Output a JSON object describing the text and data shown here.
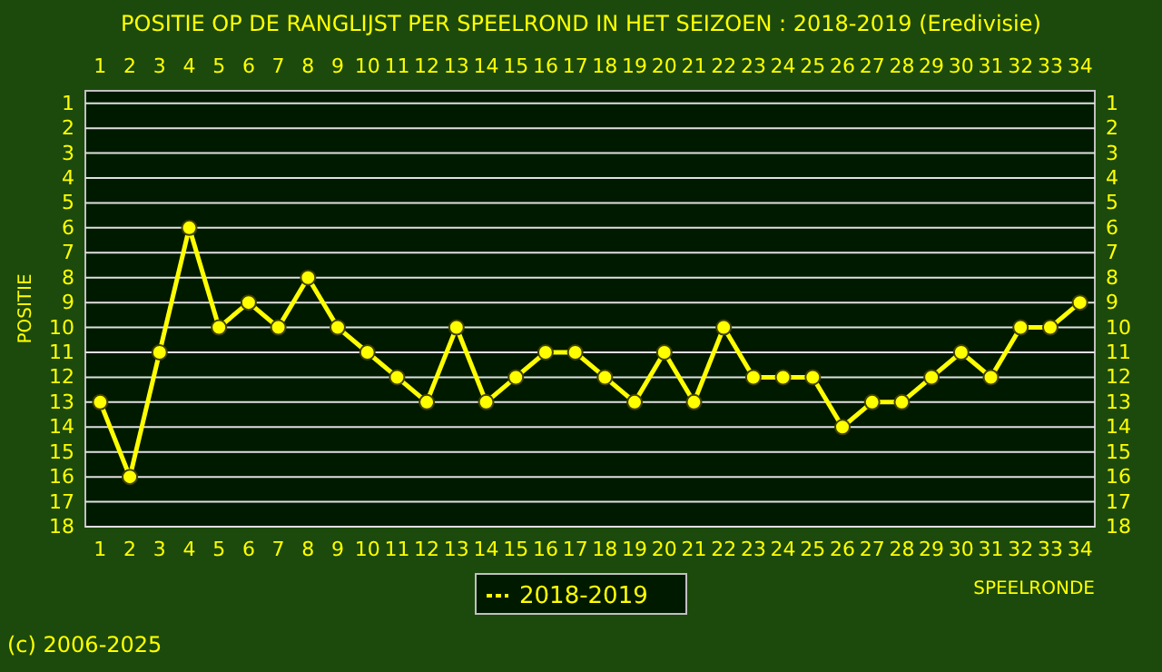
{
  "chart_data": {
    "type": "line",
    "title": "POSITIE OP DE RANGLIJST PER  SPEELROND IN HET SEIZOEN : 2018-2019 (Eredivisie)",
    "xlabel": "SPEELRONDE",
    "ylabel": "POSITIE",
    "x": [
      1,
      2,
      3,
      4,
      5,
      6,
      7,
      8,
      9,
      10,
      11,
      12,
      13,
      14,
      15,
      16,
      17,
      18,
      19,
      20,
      21,
      22,
      23,
      24,
      25,
      26,
      27,
      28,
      29,
      30,
      31,
      32,
      33,
      34
    ],
    "series": [
      {
        "name": "2018-2019",
        "color": "#ffff00",
        "values": [
          13,
          16,
          11,
          6,
          10,
          9,
          10,
          8,
          10,
          11,
          12,
          13,
          10,
          13,
          12,
          11,
          11,
          12,
          13,
          11,
          13,
          10,
          12,
          12,
          12,
          14,
          13,
          13,
          12,
          11,
          12,
          10,
          10,
          9
        ]
      }
    ],
    "xlim": [
      0.5,
      34.5
    ],
    "xticks": [
      1,
      2,
      3,
      4,
      5,
      6,
      7,
      8,
      9,
      10,
      11,
      12,
      13,
      14,
      15,
      16,
      17,
      18,
      19,
      20,
      21,
      22,
      23,
      24,
      25,
      26,
      27,
      28,
      29,
      30,
      31,
      32,
      33,
      34
    ],
    "x2lim": [
      0.5,
      34.5
    ],
    "x2ticks": [
      1,
      2,
      3,
      4,
      5,
      6,
      7,
      8,
      9,
      10,
      11,
      12,
      13,
      14,
      15,
      16,
      17,
      18,
      19,
      20,
      21,
      22,
      23,
      24,
      25,
      26,
      27,
      28,
      29,
      30,
      31,
      32,
      33,
      34
    ],
    "ylim": [
      18,
      0.5
    ],
    "yticks": [
      1,
      2,
      3,
      4,
      5,
      6,
      7,
      8,
      9,
      10,
      11,
      12,
      13,
      14,
      15,
      16,
      17,
      18
    ],
    "y2lim": [
      18,
      0.5
    ],
    "y2ticks": [
      1,
      2,
      3,
      4,
      5,
      6,
      7,
      8,
      9,
      10,
      11,
      12,
      13,
      14,
      15,
      16,
      17,
      18
    ],
    "grid": "y",
    "legend": "bottom",
    "marker": "circle",
    "line_style": "solid",
    "annotations": [
      "(c) 2006-2025"
    ]
  }
}
